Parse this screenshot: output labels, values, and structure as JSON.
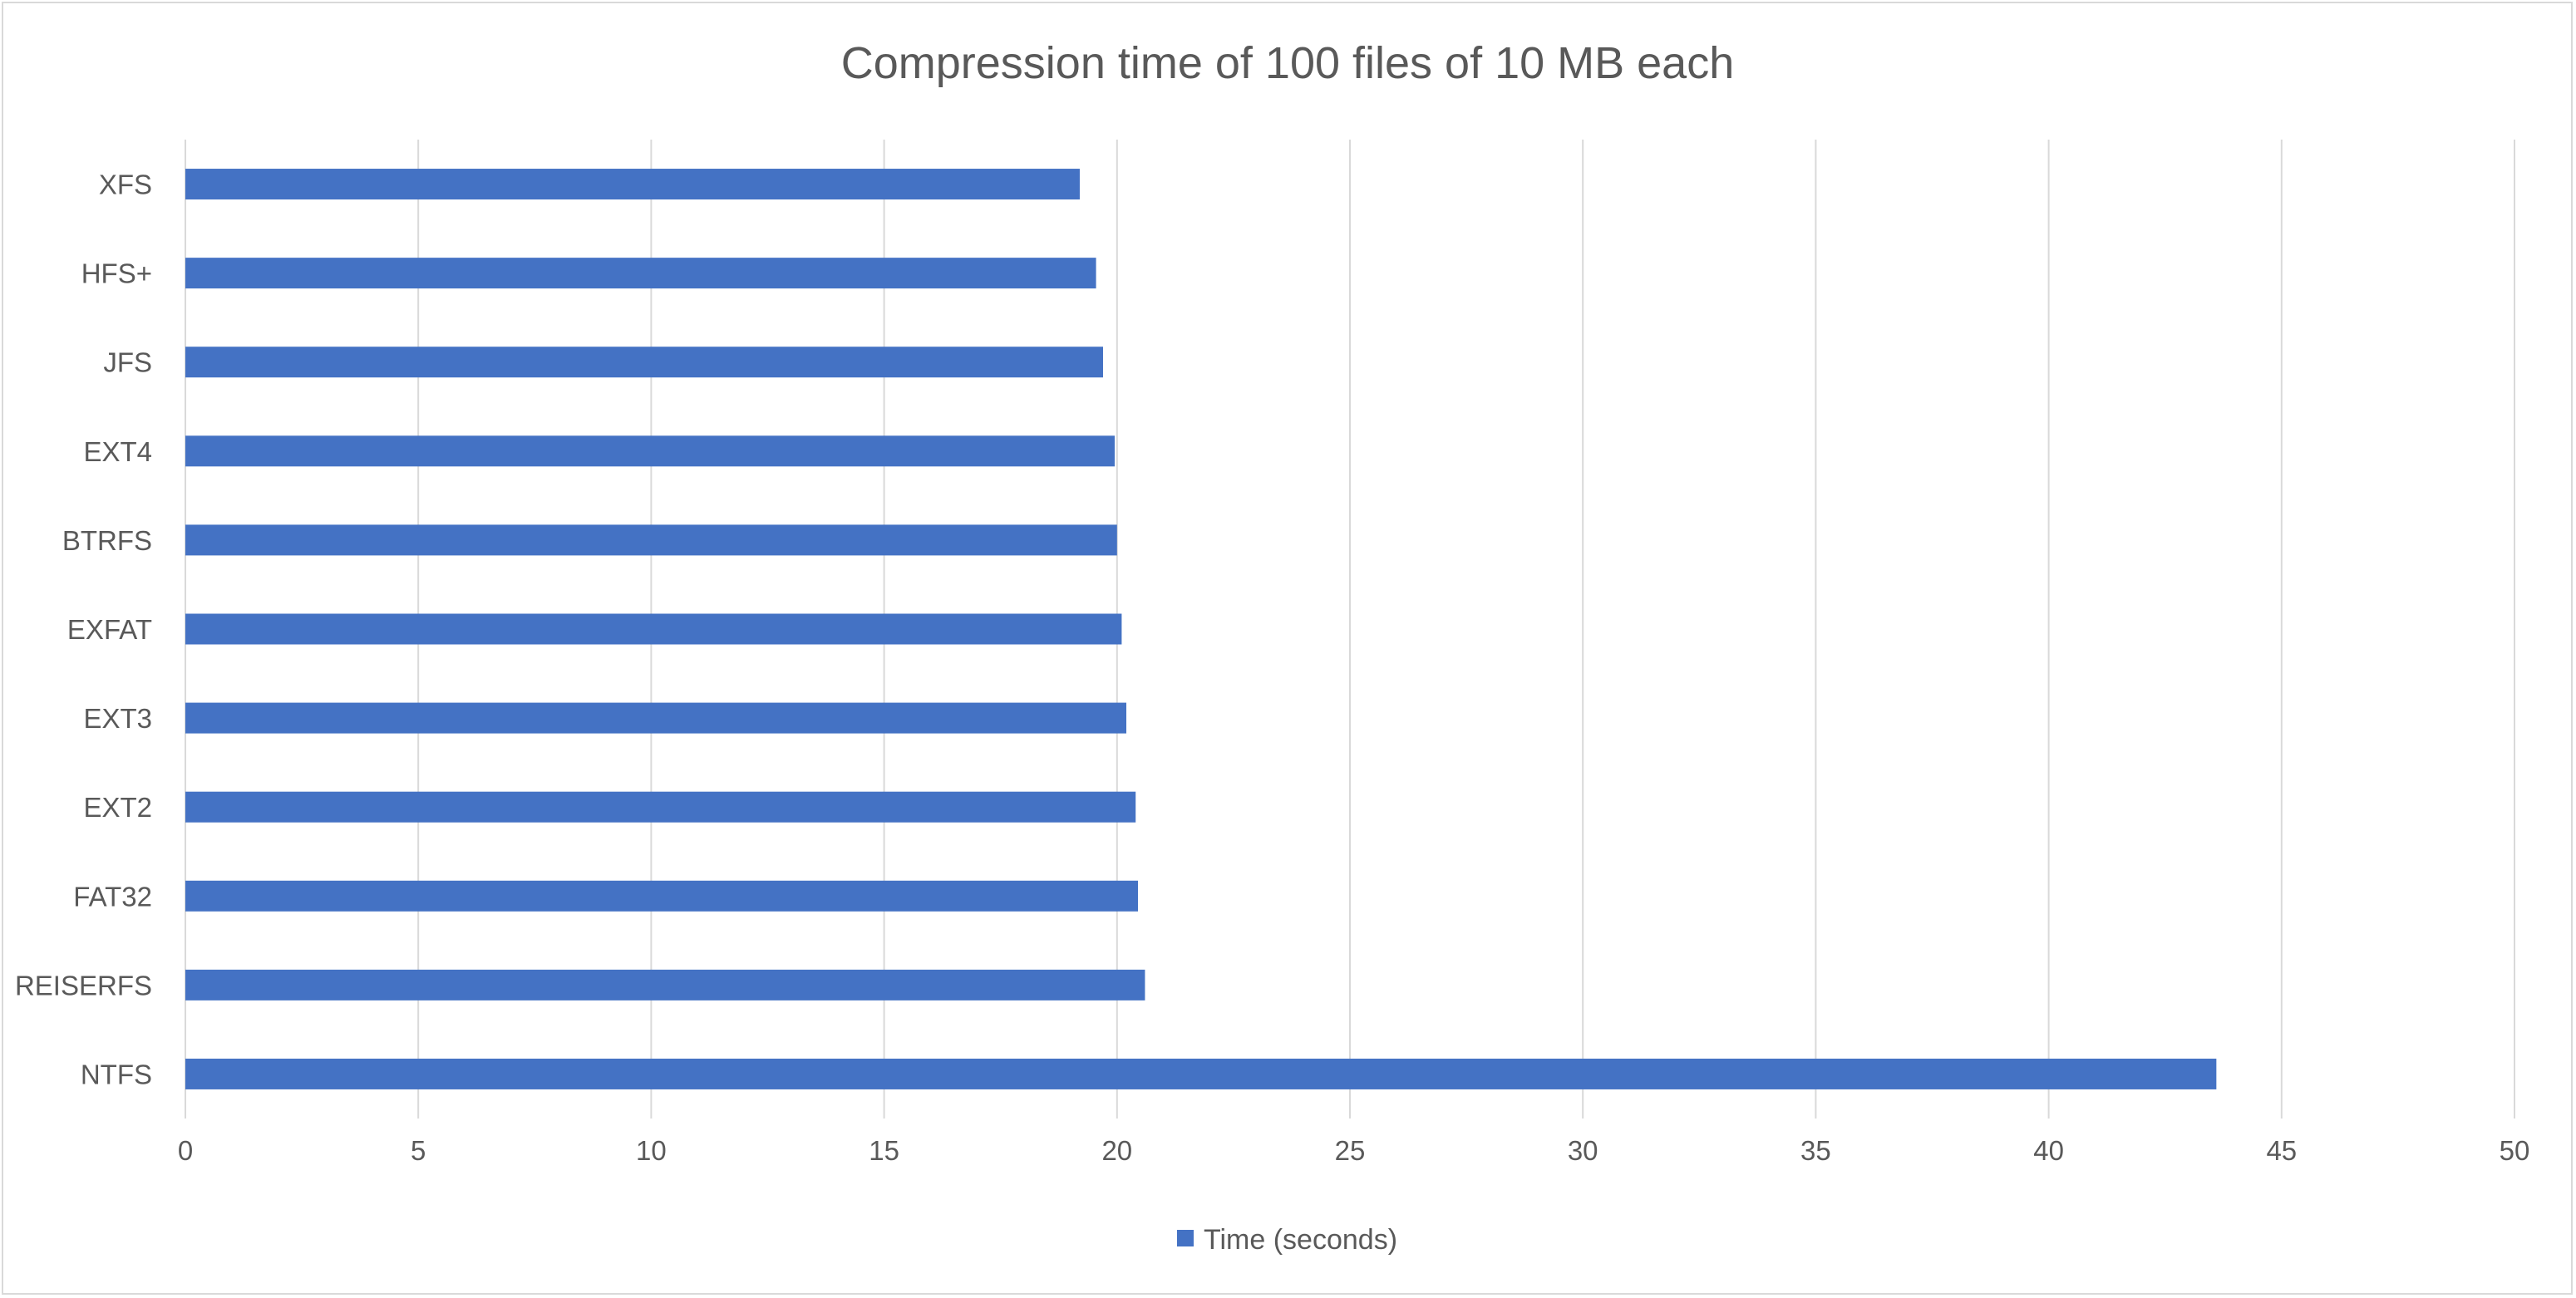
{
  "chart_data": {
    "type": "bar",
    "orientation": "horizontal",
    "title": "Compression time of 100 files of 10 MB each",
    "categories": [
      "XFS",
      "HFS+",
      "JFS",
      "EXT4",
      "BTRFS",
      "EXFAT",
      "EXT3",
      "EXT2",
      "FAT32",
      "REISERFS",
      "NTFS"
    ],
    "series": [
      {
        "name": "Time (seconds)",
        "values": [
          19.2,
          19.55,
          19.7,
          19.95,
          20.0,
          20.1,
          20.2,
          20.4,
          20.45,
          20.6,
          43.6
        ],
        "color": "#4472c4"
      }
    ],
    "x_ticks": [
      "0",
      "5",
      "10",
      "15",
      "20",
      "25",
      "30",
      "35",
      "40",
      "45",
      "50"
    ],
    "xlim": [
      0,
      50
    ],
    "grid": "vertical",
    "legend_position": "bottom",
    "colors": {
      "bar": "#4472c4",
      "grid": "#d9d9d9",
      "text": "#595959",
      "border": "#d9d9d9"
    }
  }
}
